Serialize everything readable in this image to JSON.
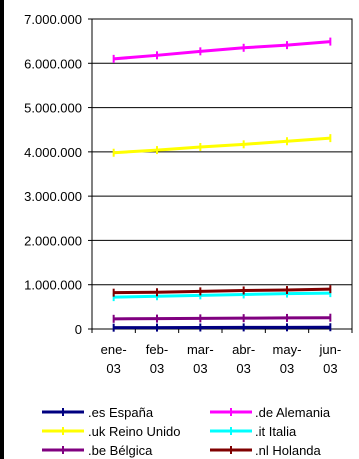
{
  "chart_data": {
    "type": "line",
    "title": "",
    "xlabel": "",
    "ylabel": "",
    "categories": [
      [
        "ene-",
        "03"
      ],
      [
        "feb-",
        "03"
      ],
      [
        "mar-",
        "03"
      ],
      [
        "abr-",
        "03"
      ],
      [
        "may-",
        "03"
      ],
      [
        "jun-",
        "03"
      ]
    ],
    "ylim": [
      0,
      7000000
    ],
    "y_ticks": [
      0,
      1000000,
      2000000,
      3000000,
      4000000,
      5000000,
      6000000,
      7000000
    ],
    "y_tick_labels": [
      "0",
      "1.000.000",
      "2.000.000",
      "3.000.000",
      "4.000.000",
      "5.000.000",
      "6.000.000",
      "7.000.000"
    ],
    "grid": "horizontal",
    "legend_position": "bottom",
    "series": [
      {
        "name": ".es España",
        "color": "#000080",
        "values": [
          30000,
          32000,
          34000,
          36000,
          38000,
          40000
        ]
      },
      {
        "name": ".de Alemania",
        "color": "#ff00ff",
        "values": [
          6100000,
          6180000,
          6270000,
          6350000,
          6410000,
          6490000
        ]
      },
      {
        "name": ".uk Reino Unido",
        "color": "#ffff00",
        "values": [
          3980000,
          4040000,
          4110000,
          4170000,
          4240000,
          4310000
        ]
      },
      {
        "name": ".it Italia",
        "color": "#00ffff",
        "values": [
          720000,
          740000,
          760000,
          780000,
          800000,
          810000
        ]
      },
      {
        "name": ".be Bélgica",
        "color": "#800080",
        "values": [
          230000,
          235000,
          240000,
          245000,
          250000,
          255000
        ]
      },
      {
        "name": ".nl Holanda",
        "color": "#800000",
        "values": [
          820000,
          830000,
          850000,
          870000,
          880000,
          900000
        ]
      }
    ]
  }
}
